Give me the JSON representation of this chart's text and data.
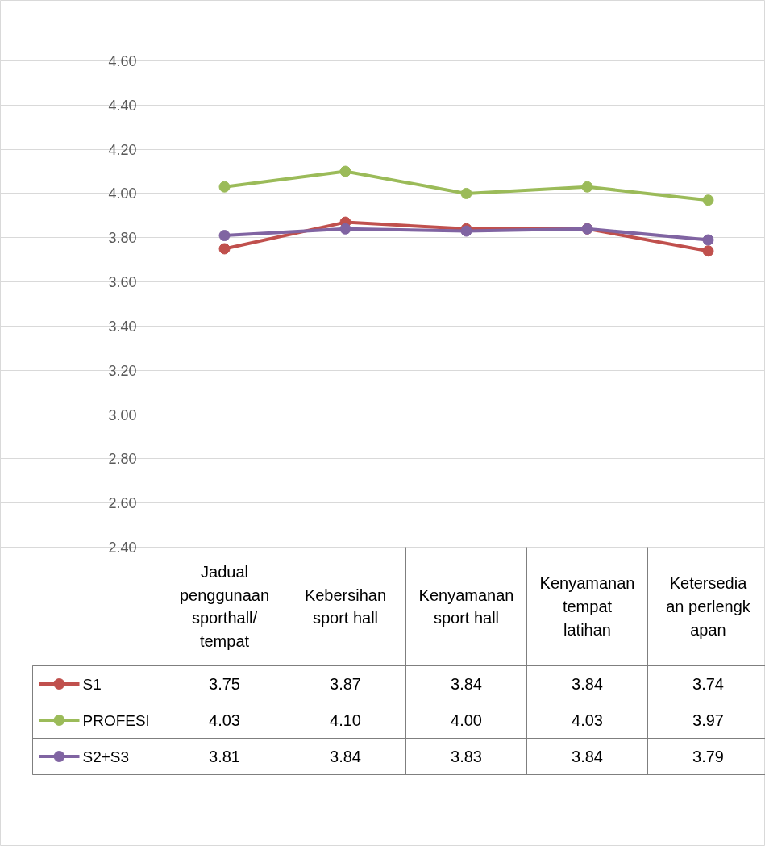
{
  "chart_data": {
    "type": "line",
    "categories": [
      "Jadual penggunaan sporthall/ tempat",
      "Kebersihan sport hall",
      "Kenyamanan sport hall",
      "Kenyamanan tempat latihan",
      "Ketersediaan perlengkapan"
    ],
    "series": [
      {
        "name": "S1",
        "color": "#c0504d",
        "values": [
          3.75,
          3.87,
          3.84,
          3.84,
          3.74
        ],
        "value_labels": [
          "3.75",
          "3.87",
          "3.84",
          "3.84",
          "3.74"
        ]
      },
      {
        "name": "PROFESI",
        "color": "#9bbb59",
        "values": [
          4.03,
          4.1,
          4.0,
          4.03,
          3.97
        ],
        "value_labels": [
          "4.03",
          "4.10",
          "4.00",
          "4.03",
          "3.97"
        ]
      },
      {
        "name": "S2+S3",
        "color": "#8064a2",
        "values": [
          3.81,
          3.84,
          3.83,
          3.84,
          3.79
        ],
        "value_labels": [
          "3.81",
          "3.84",
          "3.83",
          "3.84",
          "3.79"
        ]
      }
    ],
    "ylim": [
      2.4,
      4.6
    ],
    "yticks": [
      {
        "value": 2.4,
        "label": "2.40"
      },
      {
        "value": 2.6,
        "label": "2.60"
      },
      {
        "value": 2.8,
        "label": "2.80"
      },
      {
        "value": 3.0,
        "label": "3.00"
      },
      {
        "value": 3.2,
        "label": "3.20"
      },
      {
        "value": 3.4,
        "label": "3.40"
      },
      {
        "value": 3.6,
        "label": "3.60"
      },
      {
        "value": 3.8,
        "label": "3.80"
      },
      {
        "value": 4.0,
        "label": "4.00"
      },
      {
        "value": 4.2,
        "label": "4.20"
      },
      {
        "value": 4.4,
        "label": "4.40"
      },
      {
        "value": 4.6,
        "label": "4.60"
      }
    ],
    "grid": "y",
    "legend": "bottom",
    "marker": "circle",
    "line_style": "solid"
  }
}
